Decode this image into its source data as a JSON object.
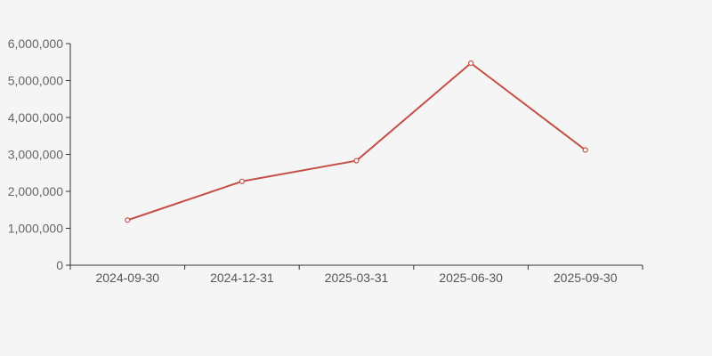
{
  "page": {
    "background_color": "#f5f5f5"
  },
  "chart_data": {
    "type": "line",
    "categories": [
      "2024-09-30",
      "2024-12-31",
      "2025-03-31",
      "2025-06-30",
      "2025-09-30"
    ],
    "series": [
      {
        "name": "value-series",
        "values": [
          1220000,
          2270000,
          2830000,
          5470000,
          3120000
        ],
        "color": "#c45048"
      }
    ],
    "title": "",
    "xlabel": "",
    "ylabel": "",
    "ylim": [
      0,
      6000000
    ],
    "y_ticks": [
      0,
      1000000,
      2000000,
      3000000,
      4000000,
      5000000,
      6000000
    ],
    "y_tick_labels": [
      "0",
      "1,000,000",
      "2,000,000",
      "3,000,000",
      "4,000,000",
      "5,000,000",
      "6,000,000"
    ],
    "x_tick_labels": [
      "2024-09-30",
      "2024-12-31",
      "2025-03-31",
      "2025-06-30",
      "2025-09-30"
    ],
    "grid": false,
    "legend": false,
    "marker_style": "hollow-circle",
    "marker_fill": "#ffffff",
    "axis_line_color": "#333333",
    "y_label_color": "#666666",
    "x_label_color": "#555555"
  }
}
